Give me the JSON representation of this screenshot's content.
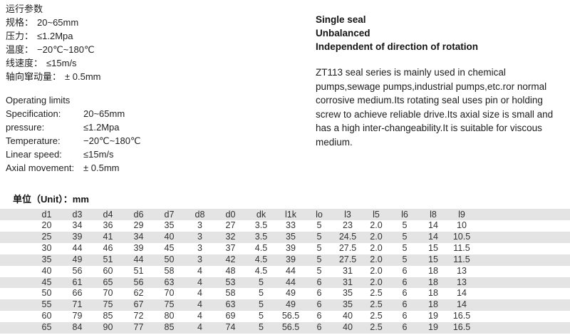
{
  "cn_params": {
    "title": "运行参数",
    "items": [
      {
        "label": "规格：",
        "value": "20~65mm"
      },
      {
        "label": "压力：",
        "value": "≤1.2Mpa"
      },
      {
        "label": "温度：",
        "value": "−20℃~180℃"
      },
      {
        "label": "线速度：",
        "value": "≤15m/s"
      },
      {
        "label": "轴向窜动量：",
        "value": "± 0.5mm"
      }
    ]
  },
  "operating_limits": {
    "title": "Operating limits",
    "items": [
      {
        "label": "Specification:",
        "value": "20~65mm"
      },
      {
        "label": "pressure:",
        "value": "≤1.2Mpa"
      },
      {
        "label": "Temperature:",
        "value": "−20℃~180℃"
      },
      {
        "label": "Linear speed:",
        "value": "≤15m/s"
      },
      {
        "label": "Axial movement:",
        "value": "± 0.5mm"
      }
    ]
  },
  "features": {
    "headings": [
      "Single seal",
      "Unbalanced",
      "Independent of direction of rotation"
    ],
    "description": "ZT113 seal series is mainly used in chemical pumps,sewage pumps,industrial pumps,etc.ror normal corrosive medium.Its rotating seal uses pin or holding screw to achieve reliable drive.Its axial size is small and has a high inter-changeability.It is suitable for viscous medium."
  },
  "table": {
    "unit_label": "单位（Unit）：mm",
    "stripe_color": "#e4e4e4",
    "columns": [
      "d1",
      "d3",
      "d4",
      "d6",
      "d7",
      "d8",
      "d0",
      "dk",
      "l1k",
      "lo",
      "l3",
      "l5",
      "l6",
      "l8",
      "l9"
    ],
    "rows": [
      [
        "20",
        "34",
        "36",
        "29",
        "35",
        "3",
        "27",
        "3.5",
        "33",
        "5",
        "23",
        "2.0",
        "5",
        "14",
        "10"
      ],
      [
        "25",
        "39",
        "41",
        "34",
        "40",
        "3",
        "32",
        "3.5",
        "35",
        "5",
        "24.5",
        "2.0",
        "5",
        "14",
        "10.5"
      ],
      [
        "30",
        "44",
        "46",
        "39",
        "45",
        "3",
        "37",
        "4.5",
        "39",
        "5",
        "27.5",
        "2.0",
        "5",
        "15",
        "11.5"
      ],
      [
        "35",
        "49",
        "51",
        "44",
        "50",
        "3",
        "42",
        "4.5",
        "39",
        "5",
        "27.5",
        "2.0",
        "5",
        "15",
        "11.5"
      ],
      [
        "40",
        "56",
        "60",
        "51",
        "58",
        "4",
        "48",
        "4.5",
        "44",
        "5",
        "31",
        "2.0",
        "6",
        "18",
        "13"
      ],
      [
        "45",
        "61",
        "65",
        "56",
        "63",
        "4",
        "53",
        "5",
        "44",
        "6",
        "31",
        "2.0",
        "6",
        "18",
        "13"
      ],
      [
        "50",
        "66",
        "70",
        "62",
        "70",
        "4",
        "58",
        "5",
        "49",
        "6",
        "35",
        "2.5",
        "6",
        "18",
        "14"
      ],
      [
        "55",
        "71",
        "75",
        "67",
        "75",
        "4",
        "63",
        "5",
        "49",
        "6",
        "35",
        "2.5",
        "6",
        "18",
        "14"
      ],
      [
        "60",
        "79",
        "85",
        "72",
        "80",
        "4",
        "69",
        "5",
        "56.5",
        "6",
        "40",
        "2.5",
        "6",
        "19",
        "16.5"
      ],
      [
        "65",
        "84",
        "90",
        "77",
        "85",
        "4",
        "74",
        "5",
        "56.5",
        "6",
        "40",
        "2.5",
        "6",
        "19",
        "16.5"
      ]
    ]
  }
}
